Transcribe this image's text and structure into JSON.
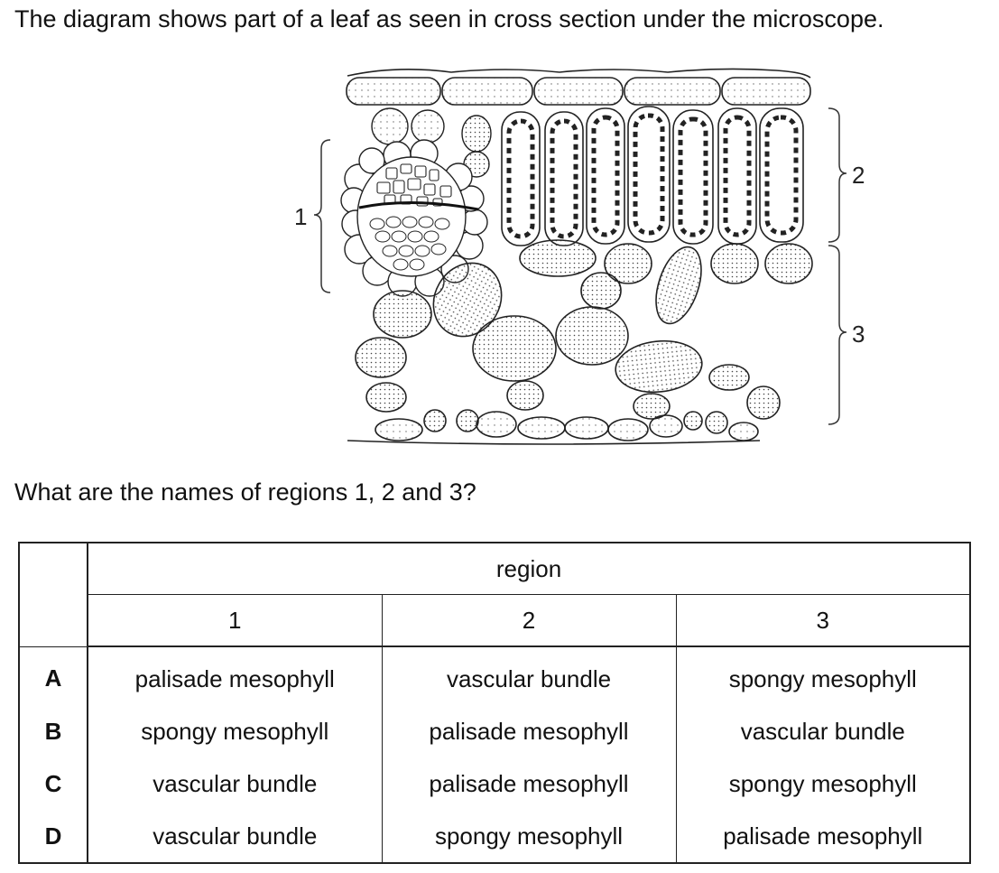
{
  "intro": "The diagram shows part of a leaf as seen in cross section under the microscope.",
  "diagram": {
    "labels": [
      "1",
      "2",
      "3"
    ]
  },
  "question": "What are the names of regions 1, 2 and 3?",
  "table": {
    "group_header": "region",
    "columns": [
      "1",
      "2",
      "3"
    ],
    "rows": [
      {
        "letter": "A",
        "cells": [
          "palisade mesophyll",
          "vascular bundle",
          "spongy mesophyll"
        ]
      },
      {
        "letter": "B",
        "cells": [
          "spongy mesophyll",
          "palisade mesophyll",
          "vascular bundle"
        ]
      },
      {
        "letter": "C",
        "cells": [
          "vascular bundle",
          "palisade mesophyll",
          "spongy mesophyll"
        ]
      },
      {
        "letter": "D",
        "cells": [
          "vascular bundle",
          "spongy mesophyll",
          "palisade mesophyll"
        ]
      }
    ]
  }
}
